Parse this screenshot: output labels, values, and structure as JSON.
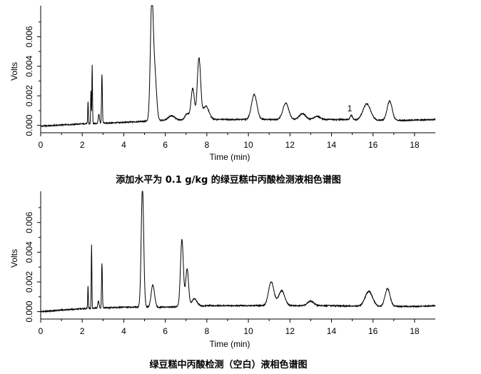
{
  "chart_data": [
    {
      "type": "line",
      "caption": "添加水平为 0.1 g/kg 的绿豆糕中丙酸检测液相色谱图",
      "xlabel": "Time (min)",
      "ylabel": "Volts",
      "xlim": [
        0,
        19
      ],
      "ylim": [
        -0.0005,
        0.0081
      ],
      "xticks": [
        "0",
        "2",
        "4",
        "6",
        "8",
        "10",
        "12",
        "14",
        "16",
        "18"
      ],
      "yticks": [
        "0.000",
        "0.002",
        "0.004",
        "0.006"
      ],
      "grid": false,
      "annotations": [
        {
          "text": "1",
          "x": 14.95,
          "y": 0.0012
        }
      ],
      "baseline": [
        [
          0,
          -5e-05
        ],
        [
          2,
          0.0001
        ],
        [
          4,
          0.0002
        ],
        [
          6,
          0.00035
        ],
        [
          8,
          0.0004
        ],
        [
          10,
          0.0004
        ],
        [
          12,
          0.0004
        ],
        [
          14,
          0.0004
        ],
        [
          16,
          0.00035
        ],
        [
          18,
          0.00035
        ],
        [
          19,
          0.0004
        ]
      ],
      "peaks": [
        {
          "t": 2.28,
          "h": 0.0015,
          "w": 0.015
        },
        {
          "t": 2.42,
          "h": 0.0022,
          "w": 0.015
        },
        {
          "t": 2.48,
          "h": 0.004,
          "w": 0.015
        },
        {
          "t": 2.8,
          "h": 0.0006,
          "w": 0.03
        },
        {
          "t": 2.95,
          "h": 0.0033,
          "w": 0.02
        },
        {
          "t": 5.35,
          "h": 0.008,
          "w": 0.07
        },
        {
          "t": 5.5,
          "h": 0.003,
          "w": 0.08
        },
        {
          "t": 6.3,
          "h": 0.0003,
          "w": 0.15
        },
        {
          "t": 7.05,
          "h": 0.0004,
          "w": 0.1
        },
        {
          "t": 7.32,
          "h": 0.0021,
          "w": 0.08
        },
        {
          "t": 7.62,
          "h": 0.0041,
          "w": 0.08
        },
        {
          "t": 7.95,
          "h": 0.0009,
          "w": 0.15
        },
        {
          "t": 10.28,
          "h": 0.0017,
          "w": 0.13
        },
        {
          "t": 11.8,
          "h": 0.0011,
          "w": 0.14
        },
        {
          "t": 12.6,
          "h": 0.0004,
          "w": 0.15
        },
        {
          "t": 13.3,
          "h": 0.0002,
          "w": 0.15
        },
        {
          "t": 14.95,
          "h": 0.0003,
          "w": 0.06
        },
        {
          "t": 15.7,
          "h": 0.0011,
          "w": 0.18
        },
        {
          "t": 16.8,
          "h": 0.0013,
          "w": 0.12
        }
      ]
    },
    {
      "type": "line",
      "caption": "绿豆糕中丙酸检测（空白）液相色谱图",
      "xlabel": "Time (min)",
      "ylabel": "Volts",
      "xlim": [
        0,
        19
      ],
      "ylim": [
        -0.0005,
        0.0081
      ],
      "xticks": [
        "0",
        "2",
        "4",
        "6",
        "8",
        "10",
        "12",
        "14",
        "16",
        "18"
      ],
      "yticks": [
        "0.000",
        "0.002",
        "0.004",
        "0.006"
      ],
      "grid": false,
      "baseline": [
        [
          0,
          0.0
        ],
        [
          2,
          0.0002
        ],
        [
          4,
          0.0003
        ],
        [
          6,
          0.0003
        ],
        [
          8,
          0.0004
        ],
        [
          10,
          0.0004
        ],
        [
          12,
          0.0004
        ],
        [
          14,
          0.0004
        ],
        [
          16,
          0.00035
        ],
        [
          18,
          0.00035
        ],
        [
          19,
          0.0004
        ]
      ],
      "peaks": [
        {
          "t": 2.28,
          "h": 0.0015,
          "w": 0.015
        },
        {
          "t": 2.45,
          "h": 0.0043,
          "w": 0.015
        },
        {
          "t": 2.78,
          "h": 0.0005,
          "w": 0.03
        },
        {
          "t": 2.95,
          "h": 0.003,
          "w": 0.02
        },
        {
          "t": 4.9,
          "h": 0.008,
          "w": 0.06
        },
        {
          "t": 5.4,
          "h": 0.0015,
          "w": 0.08
        },
        {
          "t": 6.8,
          "h": 0.0045,
          "w": 0.07
        },
        {
          "t": 7.05,
          "h": 0.0025,
          "w": 0.07
        },
        {
          "t": 7.4,
          "h": 0.0005,
          "w": 0.12
        },
        {
          "t": 11.1,
          "h": 0.0016,
          "w": 0.13
        },
        {
          "t": 11.6,
          "h": 0.001,
          "w": 0.15
        },
        {
          "t": 13.0,
          "h": 0.0003,
          "w": 0.15
        },
        {
          "t": 15.8,
          "h": 0.001,
          "w": 0.18
        },
        {
          "t": 16.7,
          "h": 0.0012,
          "w": 0.12
        }
      ]
    }
  ],
  "colors": {
    "trace": "#000000",
    "axis": "#000000",
    "background": "#ffffff"
  }
}
